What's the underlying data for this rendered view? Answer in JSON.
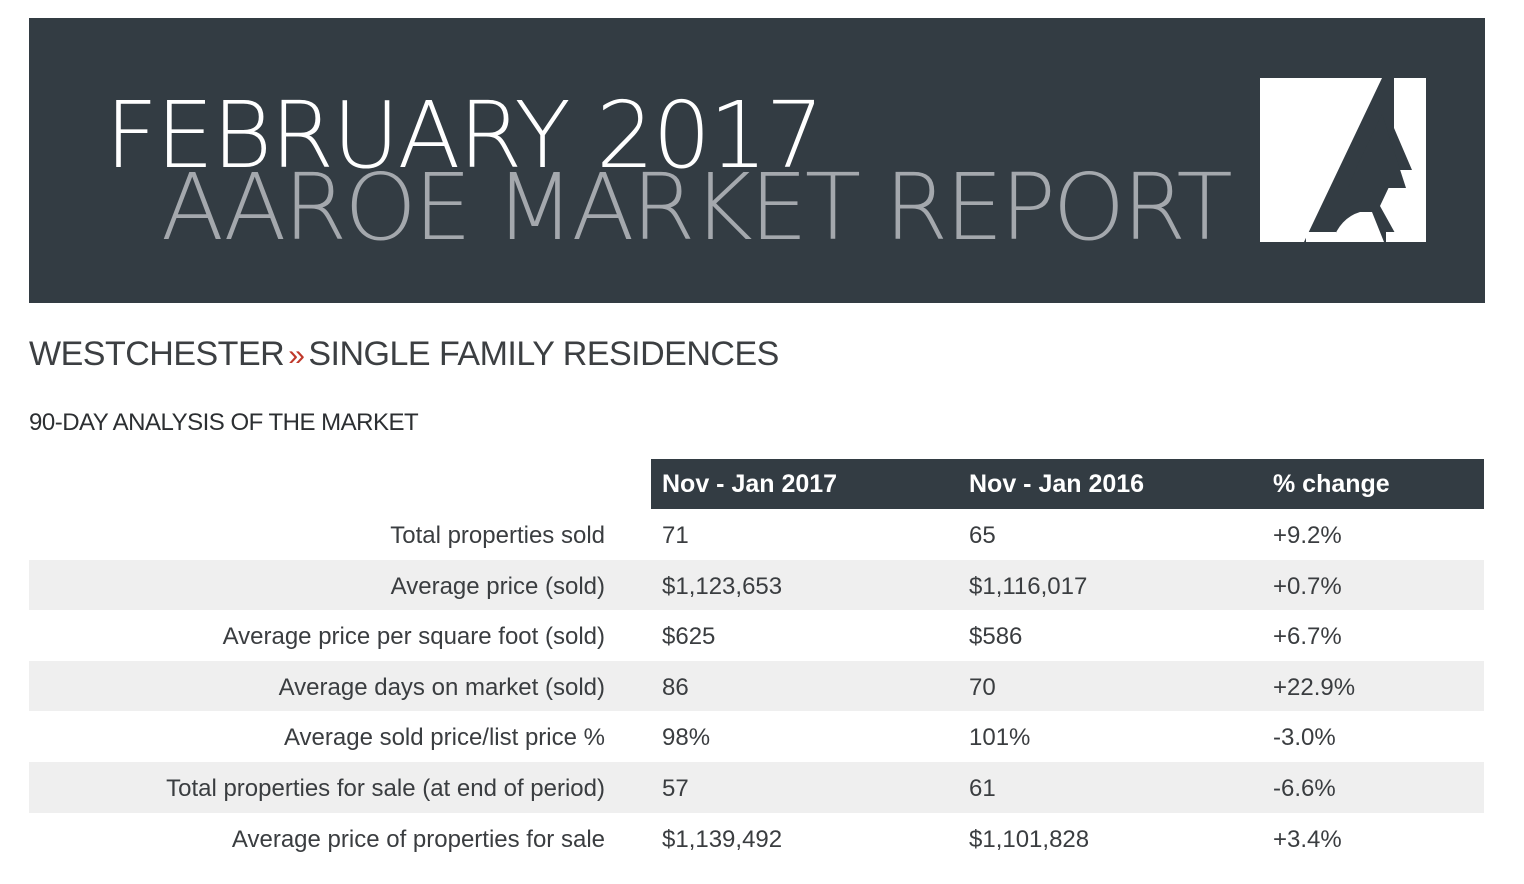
{
  "banner": {
    "line1": "FEBRUARY 2017",
    "line2": "AAROE MARKET REPORT",
    "background_color": "#333c43",
    "line2_color": "#a4a8ad"
  },
  "breadcrumb": {
    "region": "WESTCHESTER",
    "separator": "»",
    "category": "SINGLE FAMILY RESIDENCES",
    "separator_color": "#c0392b"
  },
  "section_title": "90-DAY ANALYSIS OF THE MARKET",
  "table": {
    "headers": [
      "Nov - Jan 2017",
      "Nov - Jan 2016",
      "% change"
    ],
    "rows": [
      {
        "label": "Total properties sold",
        "current": "71",
        "previous": "65",
        "change": "+9.2%"
      },
      {
        "label": "Average price (sold)",
        "current": "$1,123,653",
        "previous": "$1,116,017",
        "change": "+0.7%"
      },
      {
        "label": "Average price per square foot (sold)",
        "current": "$625",
        "previous": "$586",
        "change": "+6.7%"
      },
      {
        "label": "Average days on market (sold)",
        "current": "86",
        "previous": "70",
        "change": "+22.9%"
      },
      {
        "label": "Average sold price/list price %",
        "current": "98%",
        "previous": "101%",
        "change": "-3.0%"
      },
      {
        "label": "Total properties for sale (at end of period)",
        "current": "57",
        "previous": "61",
        "change": "-6.6%"
      },
      {
        "label": "Average price of properties for sale",
        "current": "$1,139,492",
        "previous": "$1,101,828",
        "change": "+3.4%"
      }
    ]
  }
}
